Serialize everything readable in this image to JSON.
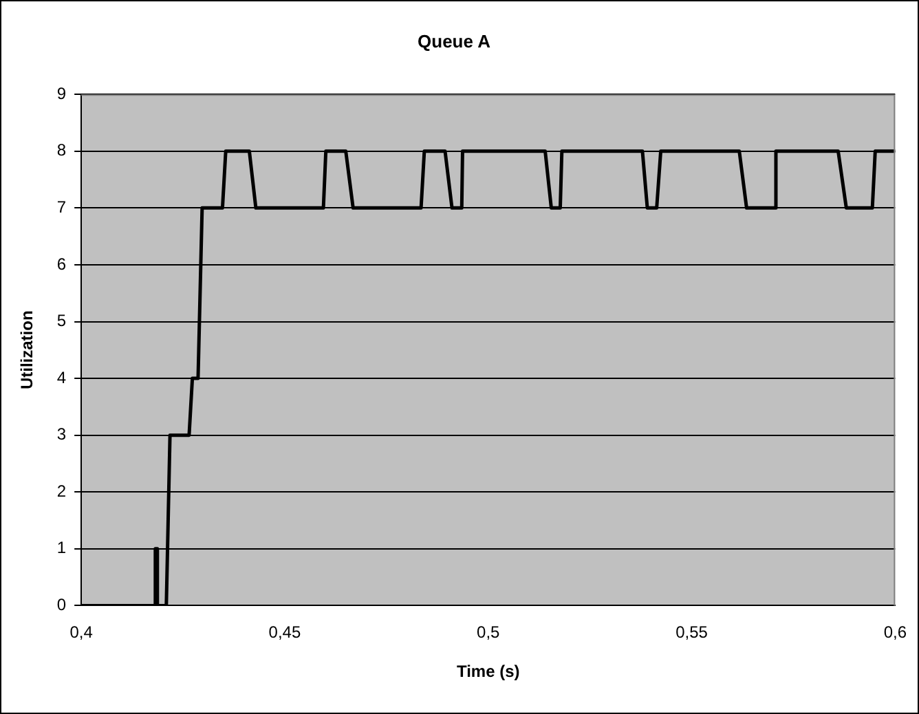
{
  "chart_data": {
    "type": "line",
    "title": "Queue A",
    "xlabel": "Time (s)",
    "ylabel": "Utilization",
    "x": [
      0.4,
      0.4182,
      0.4182,
      0.4187,
      0.4187,
      0.4209,
      0.4218,
      0.4265,
      0.4273,
      0.4287,
      0.4297,
      0.4347,
      0.4355,
      0.4413,
      0.4429,
      0.4595,
      0.4601,
      0.465,
      0.4668,
      0.4835,
      0.4843,
      0.4894,
      0.4911,
      0.4935,
      0.4937,
      0.514,
      0.5155,
      0.5177,
      0.5181,
      0.5379,
      0.5391,
      0.5414,
      0.5424,
      0.5617,
      0.5635,
      0.5705,
      0.5707,
      0.586,
      0.588,
      0.5944,
      0.5951,
      0.6
    ],
    "series": [
      {
        "color": "#000000",
        "values": [
          0,
          0,
          1,
          1,
          0,
          0,
          3,
          3,
          4,
          4,
          7,
          7,
          8,
          8,
          7,
          7,
          8,
          8,
          7,
          7,
          8,
          8,
          7,
          7,
          8,
          8,
          7,
          7,
          8,
          8,
          7,
          7,
          8,
          8,
          7,
          7,
          8,
          8,
          7,
          7,
          8,
          8
        ]
      }
    ],
    "xlim": [
      0.4,
      0.6
    ],
    "xticks": [
      {
        "value": 0.4,
        "label": "0,4"
      },
      {
        "value": 0.45,
        "label": "0,45"
      },
      {
        "value": 0.5,
        "label": "0,5"
      },
      {
        "value": 0.55,
        "label": "0,55"
      },
      {
        "value": 0.6,
        "label": "0,6"
      }
    ],
    "ylim": [
      0,
      9
    ],
    "yticks": [
      0,
      1,
      2,
      3,
      4,
      5,
      6,
      7,
      8,
      9
    ],
    "grid": "y",
    "legend": false,
    "marker": "none",
    "line_style": "solid"
  }
}
